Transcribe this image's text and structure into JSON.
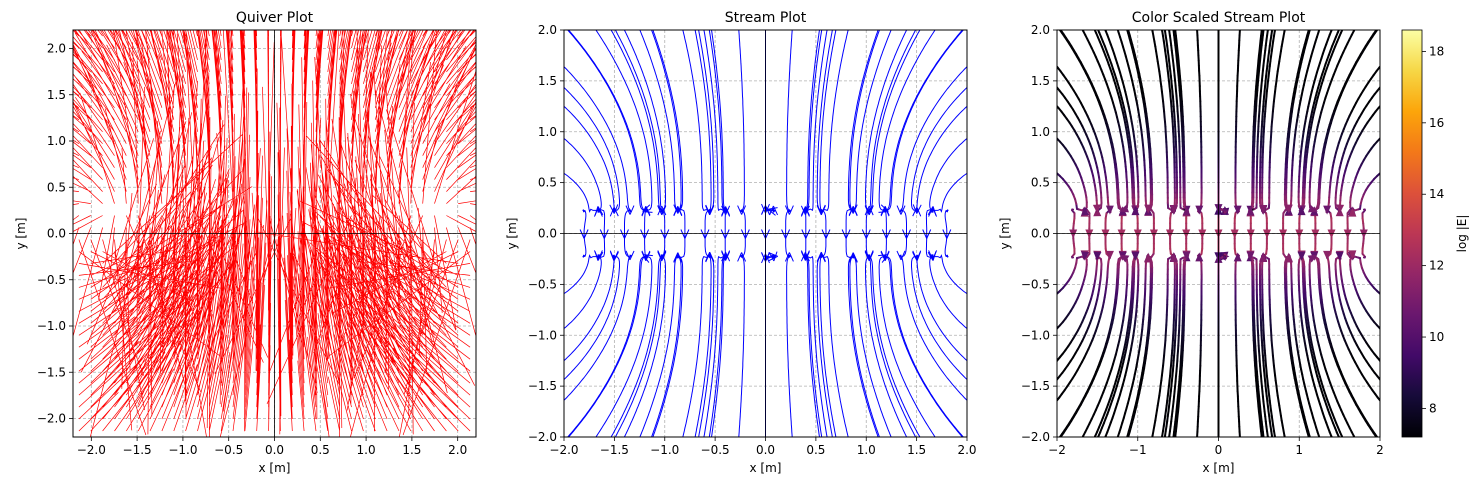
{
  "chart_data": [
    {
      "type": "quiver",
      "title": "Quiver Plot",
      "xlabel": "x [m]",
      "ylabel": "y [m]",
      "xlim": [
        -2.2,
        2.2
      ],
      "ylim": [
        -2.2,
        2.2
      ],
      "xticks": [
        -2.0,
        -1.5,
        -1.0,
        -0.5,
        0.0,
        0.5,
        1.0,
        1.5,
        2.0
      ],
      "yticks": [
        -2.0,
        -1.5,
        -1.0,
        -0.5,
        0.0,
        0.5,
        1.0,
        1.5,
        2.0
      ],
      "xtick_labels": [
        "−2.0",
        "−1.5",
        "−1.0",
        "−0.5",
        "0.0",
        "0.5",
        "1.0",
        "1.5",
        "2.0"
      ],
      "ytick_labels": [
        "−2.0",
        "−1.5",
        "−1.0",
        "−0.5",
        "0.0",
        "0.5",
        "1.0",
        "1.5",
        "2.0"
      ],
      "grid": true,
      "color": "#ff0000",
      "axes_lines": [
        0,
        0
      ]
    },
    {
      "type": "streamplot",
      "title": "Stream Plot",
      "xlabel": "x [m]",
      "ylabel": "y [m]",
      "xlim": [
        -2.0,
        2.0
      ],
      "ylim": [
        -2.0,
        2.0
      ],
      "xticks": [
        -2.0,
        -1.5,
        -1.0,
        -0.5,
        0.0,
        0.5,
        1.0,
        1.5,
        2.0
      ],
      "yticks": [
        -2.0,
        -1.5,
        -1.0,
        -0.5,
        0.0,
        0.5,
        1.0,
        1.5,
        2.0
      ],
      "xtick_labels": [
        "−2.0",
        "−1.5",
        "−1.0",
        "−0.5",
        "0.0",
        "0.5",
        "1.0",
        "1.5",
        "2.0"
      ],
      "ytick_labels": [
        "−2.0",
        "−1.5",
        "−1.0",
        "−0.5",
        "0.0",
        "0.5",
        "1.0",
        "1.5",
        "2.0"
      ],
      "grid": true,
      "color": "#0000ff",
      "axes_lines": [
        0,
        0
      ]
    },
    {
      "type": "streamplot",
      "title": "Color Scaled Stream Plot",
      "xlabel": "x [m]",
      "ylabel": "y [m]",
      "xlim": [
        -2,
        2
      ],
      "ylim": [
        -2.0,
        2.0
      ],
      "xticks": [
        -2,
        -1,
        0,
        1,
        2
      ],
      "yticks": [
        -2.0,
        -1.5,
        -1.0,
        -0.5,
        0.0,
        0.5,
        1.0,
        1.5,
        2.0
      ],
      "xtick_labels": [
        "−2",
        "−1",
        "0",
        "1",
        "2"
      ],
      "ytick_labels": [
        "−2.0",
        "−1.5",
        "−1.0",
        "−0.5",
        "0.0",
        "0.5",
        "1.0",
        "1.5",
        "2.0"
      ],
      "grid": true,
      "colormap": "inferno",
      "colorbar": {
        "label": "log |E|",
        "range": [
          7.2,
          18.6
        ],
        "ticks": [
          8,
          10,
          12,
          14,
          16,
          18
        ],
        "tick_labels": [
          "8",
          "10",
          "12",
          "14",
          "16",
          "18"
        ]
      },
      "axes_lines": [
        0,
        0
      ]
    }
  ]
}
